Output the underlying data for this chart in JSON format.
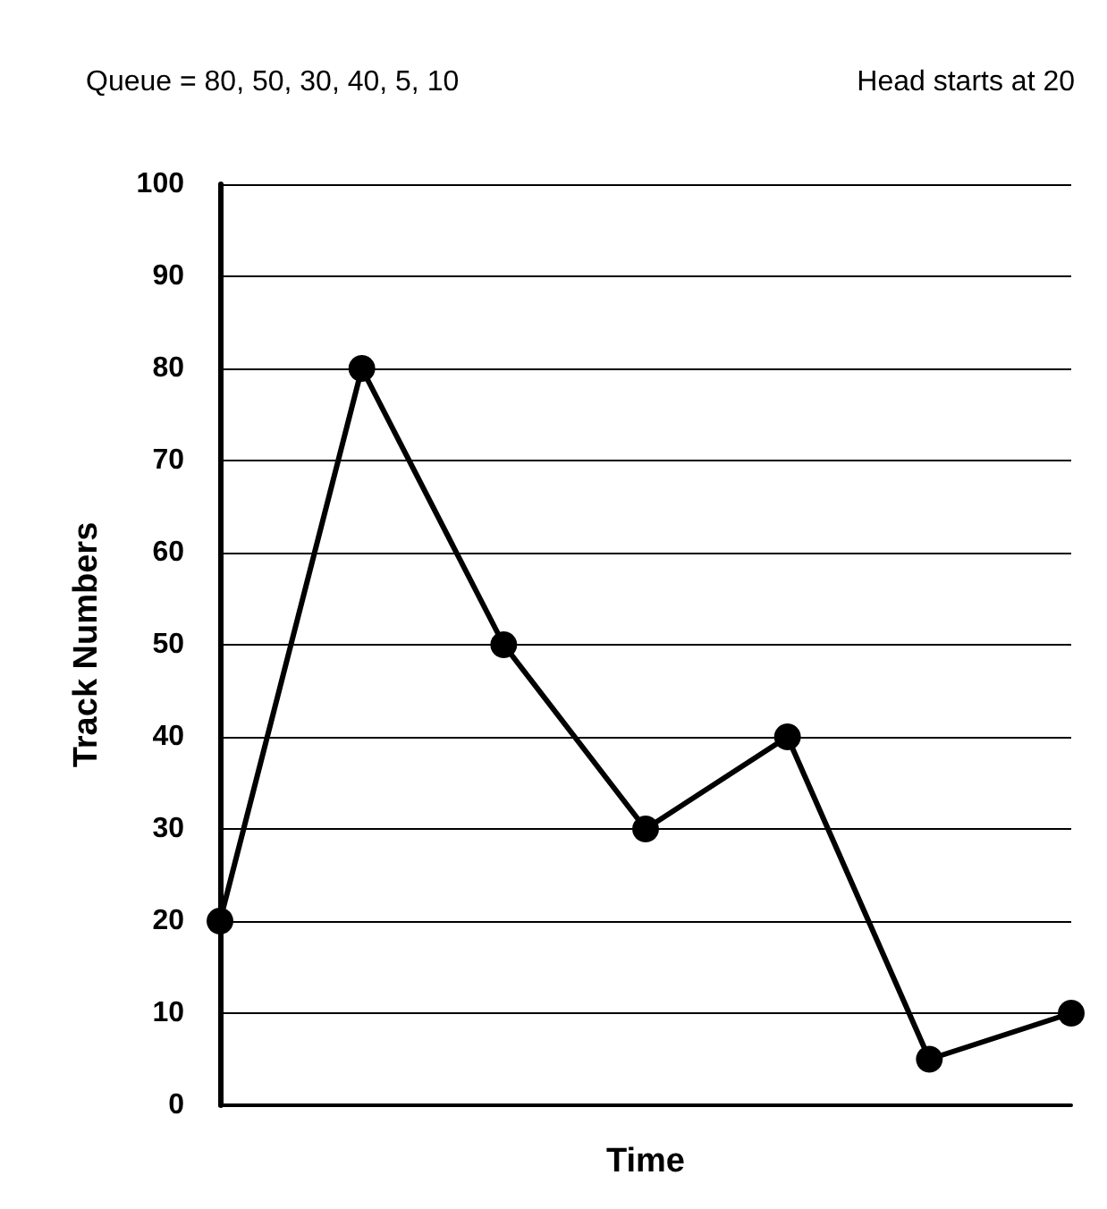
{
  "chart_data": {
    "type": "line",
    "xlabel": "Time",
    "ylabel": "Track Numbers",
    "annotations": [
      "Queue = 80, 50, 30, 40, 5, 10",
      "Head starts at 20"
    ],
    "categories": [
      null,
      null,
      null,
      null,
      null,
      null,
      null
    ],
    "series": [
      {
        "color": "#000000",
        "values": [
          20,
          80,
          50,
          30,
          40,
          5,
          10
        ]
      }
    ],
    "ylim": [
      0,
      100
    ],
    "yticks": [
      0,
      10,
      20,
      30,
      40,
      50,
      60,
      70,
      80,
      90,
      100
    ],
    "grid": "y",
    "marker": "circle",
    "line_style": "solid"
  }
}
